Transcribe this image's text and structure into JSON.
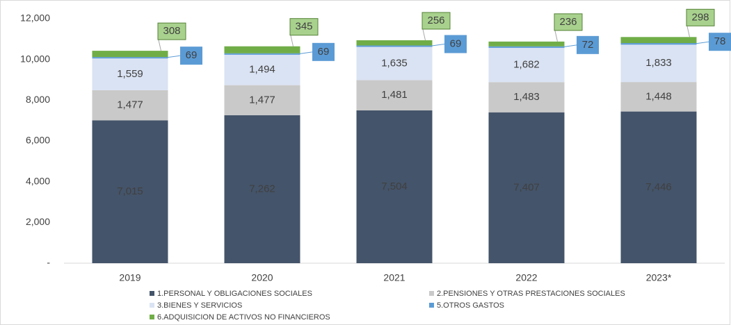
{
  "chart_data": {
    "type": "stacked_bar",
    "categories": [
      "2019",
      "2020",
      "2021",
      "2022",
      "2023*"
    ],
    "series": [
      {
        "name": "1.PERSONAL Y OBLIGACIONES SOCIALES",
        "color": "#44546a",
        "values": [
          7015,
          7262,
          7504,
          7407,
          7446
        ],
        "value_labels": [
          "7,015",
          "7,262",
          "7,504",
          "7,407",
          "7,446"
        ]
      },
      {
        "name": "2.PENSIONES Y OTRAS PRESTACIONES SOCIALES",
        "color": "#c9c9c9",
        "values": [
          1477,
          1477,
          1481,
          1483,
          1448
        ],
        "value_labels": [
          "1,477",
          "1,477",
          "1,481",
          "1,483",
          "1,448"
        ]
      },
      {
        "name": "3.BIENES Y SERVICIOS",
        "color": "#dae3f3",
        "values": [
          1559,
          1494,
          1635,
          1682,
          1833
        ],
        "value_labels": [
          "1,559",
          "1,494",
          "1,635",
          "1,682",
          "1,833"
        ]
      },
      {
        "name": "5.OTROS GASTOS",
        "color": "#5b9bd5",
        "values": [
          69,
          69,
          69,
          72,
          78
        ]
      },
      {
        "name": "6.ADQUISICION DE ACTIVOS NO FINANCIEROS",
        "color": "#70ad47",
        "values": [
          308,
          345,
          256,
          236,
          298
        ]
      }
    ],
    "ylim": [
      0,
      12000
    ],
    "yticks": [
      {
        "value": 0,
        "label": "-"
      },
      {
        "value": 2000,
        "label": "2,000"
      },
      {
        "value": 4000,
        "label": "4,000"
      },
      {
        "value": 6000,
        "label": "6,000"
      },
      {
        "value": 8000,
        "label": "8,000"
      },
      {
        "value": 10000,
        "label": "10,000"
      },
      {
        "value": 12000,
        "label": "12,000"
      }
    ],
    "grid": false
  }
}
